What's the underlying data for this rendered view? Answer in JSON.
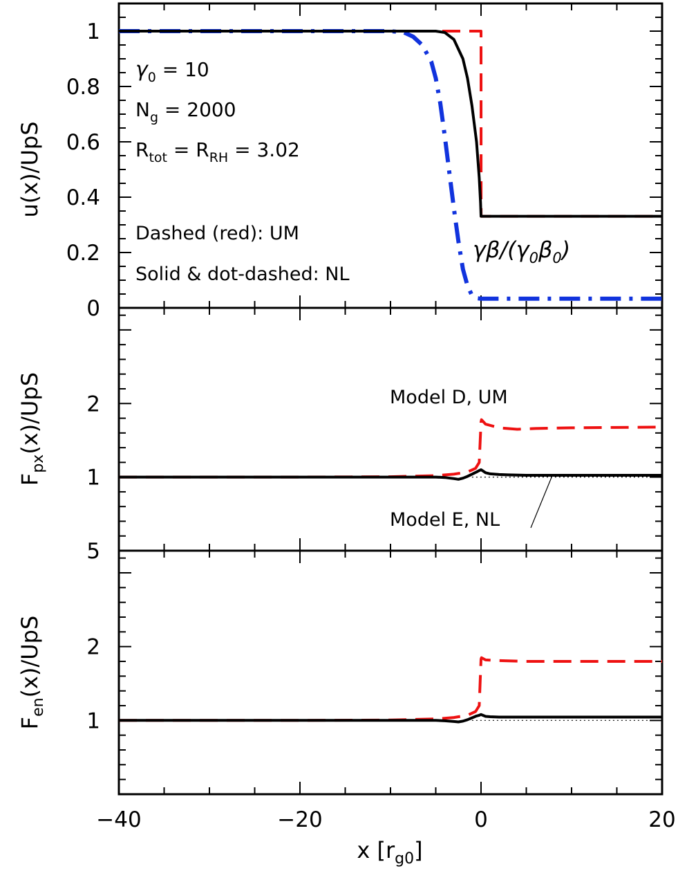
{
  "chart_data": [
    {
      "type": "line",
      "panel": "top",
      "ylabel": "u(x)/UpS",
      "xlim": [
        -40,
        20
      ],
      "ylim": [
        0,
        1.1
      ],
      "yticks": [
        0,
        0.2,
        0.4,
        0.6,
        0.8,
        1
      ],
      "ytick_labels": [
        "0",
        "0.2",
        "0.4",
        "0.6",
        "0.8",
        "1"
      ],
      "annotations": {
        "gamma": "γ₀ = 10",
        "ng": "N_g = 2000",
        "rtot": "R_tot = R_RH = 3.02",
        "dashed": "Dashed (red): UM",
        "solid": "Solid & dot-dashed: NL",
        "gb": "γβ/(γ₀β₀)"
      },
      "series": [
        {
          "style": "red-dashed",
          "color": "#ee1111",
          "x": [
            -40,
            -0.01,
            0,
            0.01,
            20
          ],
          "y": [
            1,
            1,
            1,
            0.331,
            0.331
          ]
        },
        {
          "style": "black-solid",
          "color": "#000000",
          "x": [
            -40,
            -5,
            -4,
            -3,
            -2,
            -1.5,
            -1,
            -0.5,
            -0.2,
            -0.05,
            0,
            20
          ],
          "y": [
            1,
            1,
            0.995,
            0.97,
            0.9,
            0.83,
            0.73,
            0.6,
            0.47,
            0.38,
            0.331,
            0.331
          ]
        },
        {
          "style": "blue-dot-dashed",
          "color": "#1133dd",
          "x": [
            -40,
            -10,
            -8.5,
            -7.5,
            -6.5,
            -5.5,
            -5,
            -4.5,
            -4,
            -3.5,
            -3,
            -2.5,
            -2,
            -1.5,
            -1,
            -0.5,
            0,
            20
          ],
          "y": [
            1,
            1,
            0.995,
            0.98,
            0.95,
            0.89,
            0.83,
            0.74,
            0.62,
            0.49,
            0.36,
            0.24,
            0.14,
            0.08,
            0.045,
            0.035,
            0.033,
            0.033
          ]
        }
      ]
    },
    {
      "type": "line",
      "panel": "middle",
      "ylabel": "F_px(x)/UpS",
      "xlim": [
        -40,
        20
      ],
      "ylim": [
        0,
        3.3
      ],
      "yticks": [
        1,
        2
      ],
      "ytick_labels": [
        "1",
        "2"
      ],
      "annotations": {
        "model_d": "Model D, UM",
        "model_e": "Model E, NL"
      },
      "series": [
        {
          "style": "red-dashed",
          "color": "#ee1111",
          "x": [
            -40,
            -20,
            -10,
            -5,
            -3,
            -1.5,
            -0.6,
            -0.2,
            0,
            0.05,
            0.5,
            2,
            4,
            6,
            10,
            20
          ],
          "y": [
            1,
            1,
            1.005,
            1.02,
            1.04,
            1.07,
            1.12,
            1.2,
            1.75,
            1.78,
            1.72,
            1.67,
            1.65,
            1.66,
            1.67,
            1.68
          ]
        },
        {
          "style": "black-solid",
          "color": "#000000",
          "x": [
            -40,
            -10,
            -5,
            -4,
            -3,
            -2.5,
            -2,
            -1.5,
            -1,
            -0.5,
            -0.2,
            0,
            0.2,
            0.5,
            1,
            2,
            3,
            5,
            8,
            10,
            20
          ],
          "y": [
            1,
            1,
            1,
            0.995,
            0.98,
            0.97,
            0.985,
            1.01,
            1.04,
            1.07,
            1.09,
            1.1,
            1.085,
            1.06,
            1.045,
            1.035,
            1.03,
            1.025,
            1.025,
            1.025,
            1.025
          ]
        },
        {
          "style": "black-dotted",
          "color": "#000000",
          "x": [
            -1,
            20
          ],
          "y": [
            1,
            1
          ]
        }
      ]
    },
    {
      "type": "line",
      "panel": "bottom",
      "ylabel": "F_en(x)/UpS",
      "xlabel": "x [r_g0]",
      "xlim": [
        -40,
        20
      ],
      "xticks": [
        -40,
        -20,
        0,
        20
      ],
      "xtick_labels": [
        "−40",
        "−20",
        "0",
        "20"
      ],
      "ylim": [
        0,
        3.3
      ],
      "yticks": [
        1,
        2
      ],
      "ytick_labels": [
        "1",
        "2"
      ],
      "series": [
        {
          "style": "red-dashed",
          "color": "#ee1111",
          "x": [
            -40,
            -20,
            -10,
            -5,
            -3,
            -1.5,
            -0.6,
            -0.2,
            0,
            0.05,
            0.5,
            2,
            5,
            10,
            20
          ],
          "y": [
            1,
            1,
            1.005,
            1.02,
            1.04,
            1.07,
            1.12,
            1.2,
            1.83,
            1.85,
            1.82,
            1.81,
            1.8,
            1.8,
            1.8
          ]
        },
        {
          "style": "black-solid",
          "color": "#000000",
          "x": [
            -40,
            -10,
            -5,
            -4,
            -3,
            -2.5,
            -2,
            -1.5,
            -1,
            -0.5,
            -0.2,
            0,
            0.2,
            0.5,
            1,
            2,
            3,
            5,
            10,
            20
          ],
          "y": [
            1,
            1,
            1,
            0.995,
            0.985,
            0.98,
            0.99,
            1.01,
            1.035,
            1.06,
            1.07,
            1.08,
            1.07,
            1.055,
            1.05,
            1.045,
            1.045,
            1.045,
            1.045,
            1.045
          ]
        },
        {
          "style": "black-dotted",
          "color": "#000000",
          "x": [
            -1,
            20
          ],
          "y": [
            1,
            1
          ]
        }
      ]
    }
  ],
  "edge_labels": {
    "middle_bottom": "5"
  }
}
